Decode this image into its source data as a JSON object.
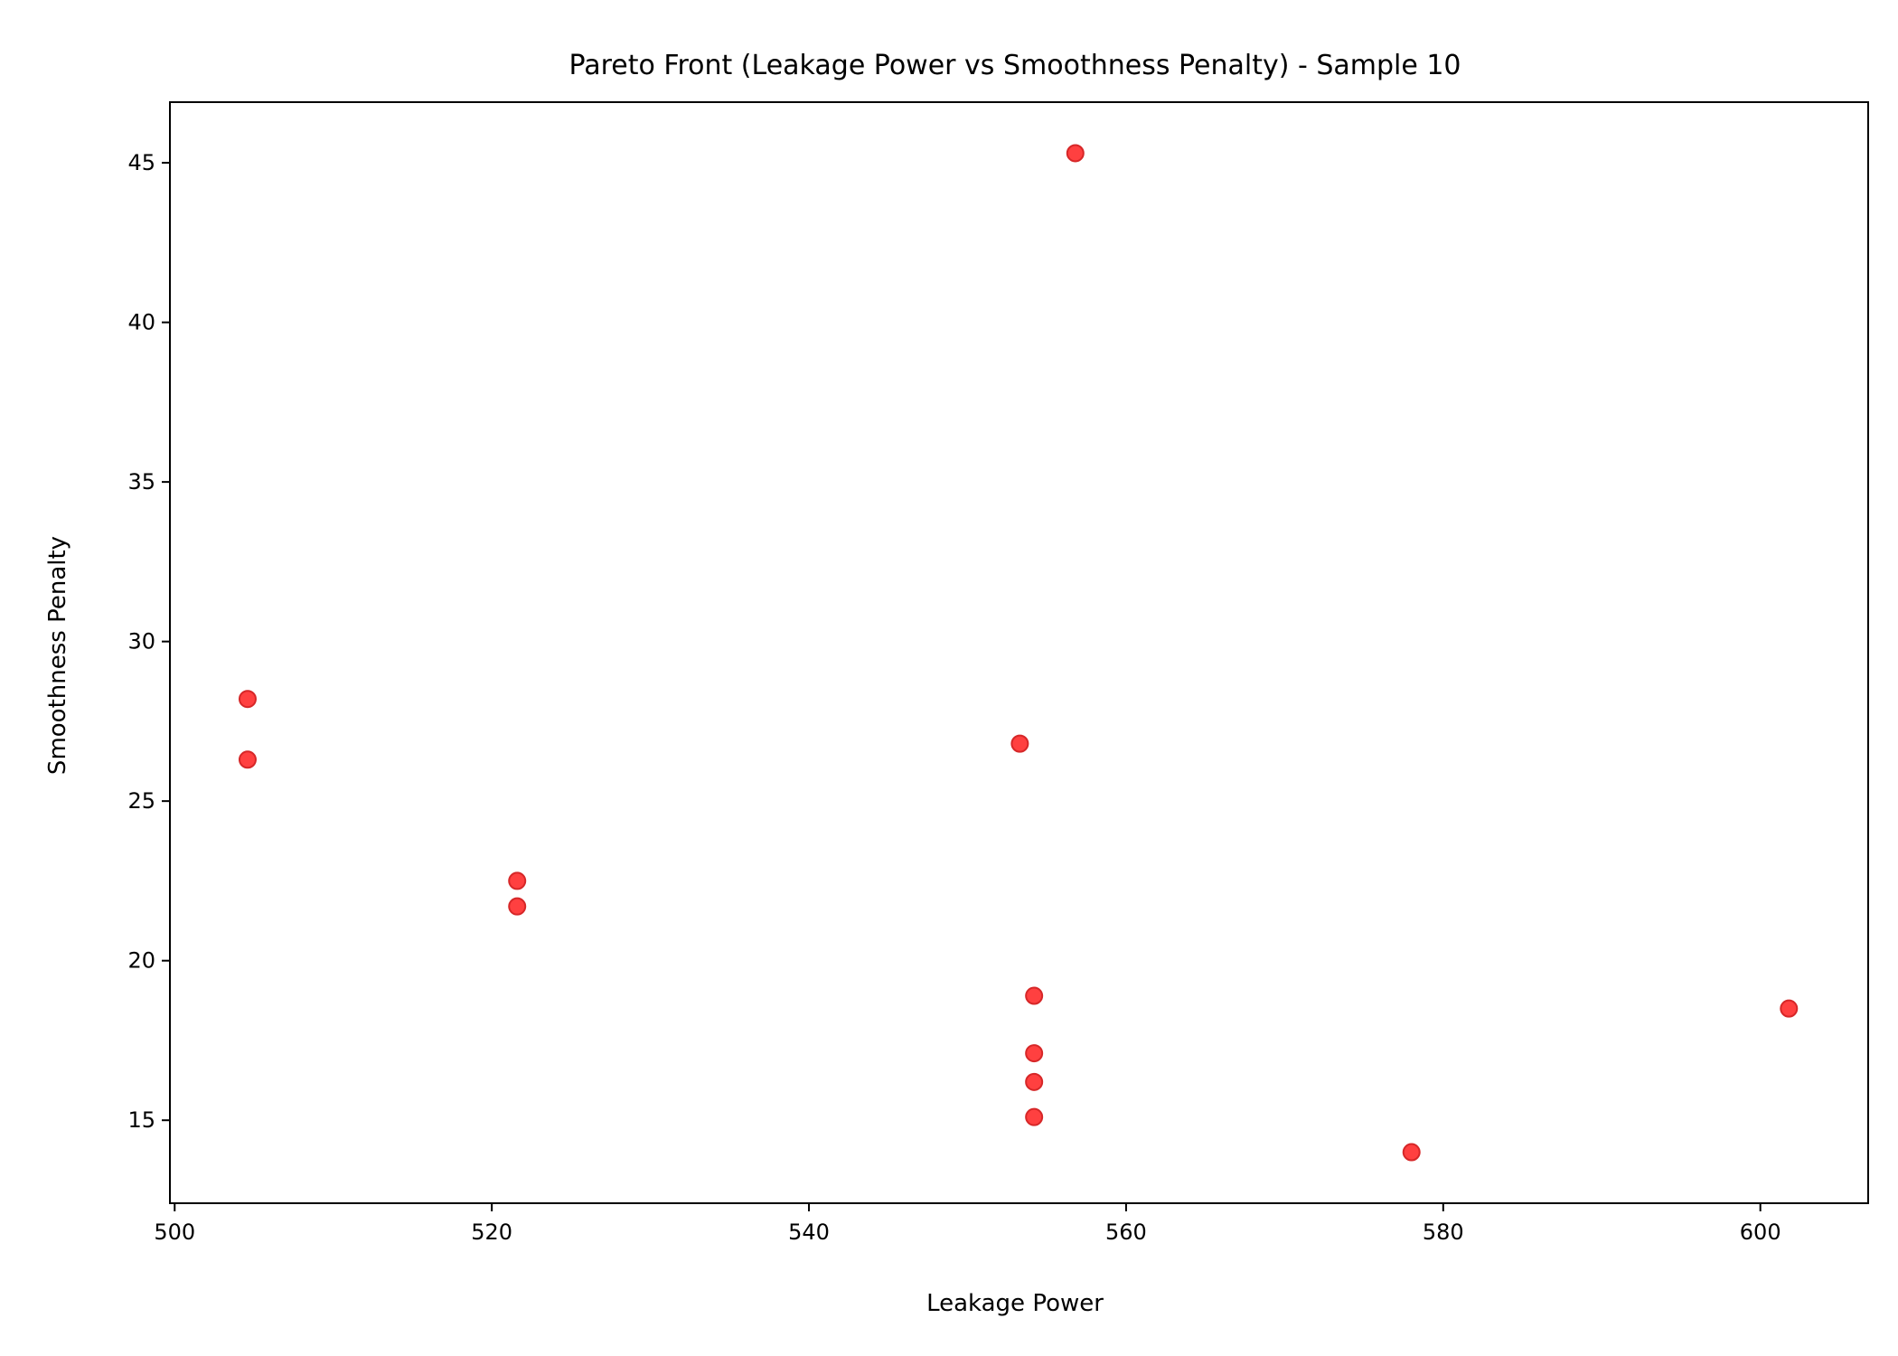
{
  "chart_data": {
    "type": "scatter",
    "title": "Pareto Front (Leakage Power vs Smoothness Penalty) - Sample 10",
    "xlabel": "Leakage Power",
    "ylabel": "Smoothness Penalty",
    "xlim": [
      499.7,
      606.8
    ],
    "ylim": [
      12.4,
      46.9
    ],
    "xticks": [
      500,
      520,
      540,
      560,
      580,
      600
    ],
    "yticks": [
      15,
      20,
      25,
      30,
      35,
      40,
      45
    ],
    "grid": false,
    "marker_color": "#ff0000",
    "marker_edge_color": "#d62728",
    "points": [
      {
        "x": 504.6,
        "y": 28.2
      },
      {
        "x": 504.6,
        "y": 26.3
      },
      {
        "x": 521.6,
        "y": 22.5
      },
      {
        "x": 521.6,
        "y": 21.7
      },
      {
        "x": 553.3,
        "y": 26.8
      },
      {
        "x": 556.8,
        "y": 45.3
      },
      {
        "x": 554.2,
        "y": 18.9
      },
      {
        "x": 554.2,
        "y": 17.1
      },
      {
        "x": 554.2,
        "y": 16.2
      },
      {
        "x": 554.2,
        "y": 15.1
      },
      {
        "x": 578.0,
        "y": 14.0
      },
      {
        "x": 601.8,
        "y": 18.5
      }
    ]
  }
}
